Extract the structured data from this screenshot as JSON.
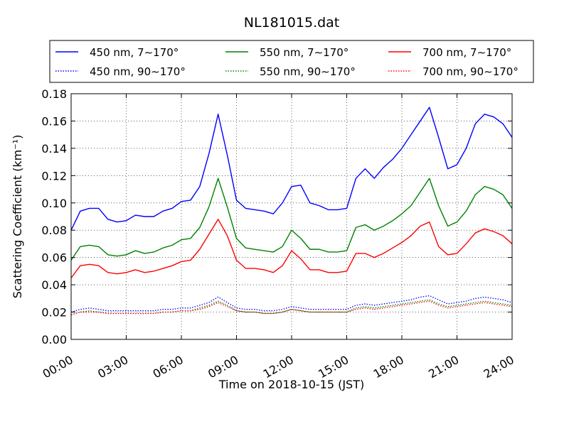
{
  "chart_data": {
    "type": "line",
    "title": "NL181015.dat",
    "xlabel": "Time on 2018-10-15 (JST)",
    "ylabel": "Scattering Coefficient (km⁻¹)",
    "xlim": [
      "00:00",
      "24:00"
    ],
    "ylim": [
      0,
      0.18
    ],
    "x_ticks": [
      "00:00",
      "03:00",
      "06:00",
      "09:00",
      "12:00",
      "15:00",
      "18:00",
      "21:00",
      "24:00"
    ],
    "y_ticks": [
      "0.00",
      "0.02",
      "0.04",
      "0.06",
      "0.08",
      "0.10",
      "0.12",
      "0.14",
      "0.16",
      "0.18"
    ],
    "grid": true,
    "legend_position": "top",
    "x": [
      "00:00",
      "00:30",
      "01:00",
      "01:30",
      "02:00",
      "02:30",
      "03:00",
      "03:30",
      "04:00",
      "04:30",
      "05:00",
      "05:30",
      "06:00",
      "06:30",
      "07:00",
      "07:30",
      "08:00",
      "08:30",
      "09:00",
      "09:30",
      "10:00",
      "10:30",
      "11:00",
      "11:30",
      "12:00",
      "12:30",
      "13:00",
      "13:30",
      "14:00",
      "14:30",
      "15:00",
      "15:30",
      "16:00",
      "16:30",
      "17:00",
      "17:30",
      "18:00",
      "18:30",
      "19:00",
      "19:30",
      "20:00",
      "20:30",
      "21:00",
      "21:30",
      "22:00",
      "22:30",
      "23:00",
      "23:30",
      "24:00"
    ],
    "series": [
      {
        "name": "450 nm, 7∼170°",
        "color": "#0000ff",
        "style": "solid",
        "values": [
          0.08,
          0.094,
          0.096,
          0.096,
          0.088,
          0.086,
          0.087,
          0.091,
          0.09,
          0.09,
          0.094,
          0.096,
          0.101,
          0.102,
          0.112,
          0.136,
          0.165,
          0.135,
          0.102,
          0.096,
          0.095,
          0.094,
          0.092,
          0.1,
          0.112,
          0.113,
          0.1,
          0.098,
          0.095,
          0.095,
          0.096,
          0.118,
          0.125,
          0.118,
          0.126,
          0.132,
          0.14,
          0.15,
          0.16,
          0.17,
          0.148,
          0.125,
          0.128,
          0.14,
          0.158,
          0.165,
          0.163,
          0.158,
          0.148
        ]
      },
      {
        "name": "550 nm, 7∼170°",
        "color": "#008000",
        "style": "solid",
        "values": [
          0.058,
          0.068,
          0.069,
          0.068,
          0.062,
          0.061,
          0.062,
          0.065,
          0.063,
          0.064,
          0.067,
          0.069,
          0.073,
          0.074,
          0.082,
          0.097,
          0.118,
          0.097,
          0.074,
          0.067,
          0.066,
          0.065,
          0.064,
          0.068,
          0.08,
          0.074,
          0.066,
          0.066,
          0.064,
          0.064,
          0.065,
          0.082,
          0.084,
          0.08,
          0.083,
          0.087,
          0.092,
          0.098,
          0.108,
          0.118,
          0.098,
          0.083,
          0.086,
          0.094,
          0.106,
          0.112,
          0.11,
          0.106,
          0.096
        ]
      },
      {
        "name": "700 nm, 7∼170°",
        "color": "#ff0000",
        "style": "solid",
        "values": [
          0.045,
          0.054,
          0.055,
          0.054,
          0.049,
          0.048,
          0.049,
          0.051,
          0.049,
          0.05,
          0.052,
          0.054,
          0.057,
          0.058,
          0.066,
          0.077,
          0.088,
          0.076,
          0.058,
          0.052,
          0.052,
          0.051,
          0.049,
          0.054,
          0.065,
          0.059,
          0.051,
          0.051,
          0.049,
          0.049,
          0.05,
          0.063,
          0.063,
          0.06,
          0.063,
          0.067,
          0.071,
          0.076,
          0.083,
          0.086,
          0.068,
          0.062,
          0.063,
          0.07,
          0.078,
          0.081,
          0.079,
          0.076,
          0.07
        ]
      },
      {
        "name": "450 nm, 90∼170°",
        "color": "#0000ff",
        "style": "dotted",
        "values": [
          0.02,
          0.022,
          0.023,
          0.022,
          0.021,
          0.021,
          0.021,
          0.021,
          0.021,
          0.021,
          0.022,
          0.022,
          0.023,
          0.023,
          0.025,
          0.027,
          0.031,
          0.027,
          0.023,
          0.022,
          0.022,
          0.021,
          0.021,
          0.022,
          0.024,
          0.023,
          0.022,
          0.022,
          0.022,
          0.022,
          0.022,
          0.025,
          0.026,
          0.025,
          0.026,
          0.027,
          0.028,
          0.029,
          0.031,
          0.032,
          0.029,
          0.026,
          0.027,
          0.028,
          0.03,
          0.031,
          0.03,
          0.029,
          0.027
        ]
      },
      {
        "name": "550 nm, 90∼170°",
        "color": "#008000",
        "style": "dotted",
        "values": [
          0.018,
          0.02,
          0.021,
          0.02,
          0.019,
          0.019,
          0.019,
          0.019,
          0.019,
          0.019,
          0.02,
          0.02,
          0.021,
          0.021,
          0.023,
          0.025,
          0.028,
          0.025,
          0.021,
          0.02,
          0.02,
          0.019,
          0.019,
          0.02,
          0.022,
          0.021,
          0.02,
          0.02,
          0.02,
          0.02,
          0.02,
          0.023,
          0.024,
          0.023,
          0.024,
          0.025,
          0.026,
          0.027,
          0.028,
          0.029,
          0.026,
          0.024,
          0.025,
          0.026,
          0.027,
          0.028,
          0.027,
          0.026,
          0.025
        ]
      },
      {
        "name": "700 nm, 90∼170°",
        "color": "#ff0000",
        "style": "dotted",
        "values": [
          0.018,
          0.02,
          0.02,
          0.02,
          0.019,
          0.019,
          0.019,
          0.019,
          0.019,
          0.019,
          0.02,
          0.02,
          0.021,
          0.021,
          0.022,
          0.024,
          0.027,
          0.024,
          0.021,
          0.02,
          0.02,
          0.019,
          0.019,
          0.02,
          0.022,
          0.021,
          0.02,
          0.02,
          0.02,
          0.02,
          0.02,
          0.022,
          0.023,
          0.022,
          0.023,
          0.024,
          0.025,
          0.026,
          0.027,
          0.028,
          0.025,
          0.023,
          0.024,
          0.025,
          0.026,
          0.027,
          0.026,
          0.025,
          0.024
        ]
      }
    ]
  }
}
